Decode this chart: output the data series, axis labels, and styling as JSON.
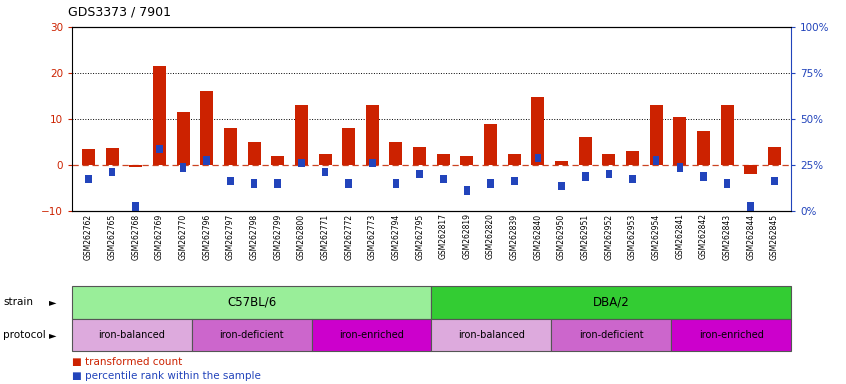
{
  "title": "GDS3373 / 7901",
  "samples": [
    "GSM262762",
    "GSM262765",
    "GSM262768",
    "GSM262769",
    "GSM262770",
    "GSM262796",
    "GSM262797",
    "GSM262798",
    "GSM262799",
    "GSM262800",
    "GSM262771",
    "GSM262772",
    "GSM262773",
    "GSM262794",
    "GSM262795",
    "GSM262817",
    "GSM262819",
    "GSM262820",
    "GSM262839",
    "GSM262840",
    "GSM262950",
    "GSM262951",
    "GSM262952",
    "GSM262953",
    "GSM262954",
    "GSM262841",
    "GSM262842",
    "GSM262843",
    "GSM262844",
    "GSM262845"
  ],
  "red_values": [
    3.5,
    3.8,
    -0.3,
    21.5,
    11.5,
    16.0,
    8.0,
    5.0,
    2.0,
    13.0,
    2.5,
    8.0,
    13.0,
    5.0,
    4.0,
    2.5,
    2.0,
    9.0,
    2.5,
    14.8,
    1.0,
    6.0,
    2.5,
    3.0,
    13.0,
    10.5,
    7.5,
    13.0,
    -2.0,
    4.0
  ],
  "blue_values_plot": [
    -3.0,
    -1.5,
    -9.0,
    3.5,
    -0.5,
    1.0,
    -3.5,
    -4.0,
    -4.0,
    0.5,
    -1.5,
    -4.0,
    0.5,
    -4.0,
    -2.0,
    -3.0,
    -5.5,
    -4.0,
    -3.5,
    1.5,
    -4.5,
    -2.5,
    -2.0,
    -3.0,
    1.0,
    -0.5,
    -2.5,
    -4.0,
    -9.0,
    -3.5
  ],
  "strain_groups": [
    {
      "label": "C57BL/6",
      "start": 0,
      "end": 15,
      "color": "#99EE99"
    },
    {
      "label": "DBA/2",
      "start": 15,
      "end": 30,
      "color": "#33CC33"
    }
  ],
  "protocol_groups": [
    {
      "label": "iron-balanced",
      "start": 0,
      "end": 5,
      "color": "#DDAADD"
    },
    {
      "label": "iron-deficient",
      "start": 5,
      "end": 10,
      "color": "#CC66CC"
    },
    {
      "label": "iron-enriched",
      "start": 10,
      "end": 15,
      "color": "#CC00CC"
    },
    {
      "label": "iron-balanced",
      "start": 15,
      "end": 20,
      "color": "#DDAADD"
    },
    {
      "label": "iron-deficient",
      "start": 20,
      "end": 25,
      "color": "#CC66CC"
    },
    {
      "label": "iron-enriched",
      "start": 25,
      "end": 30,
      "color": "#CC00CC"
    }
  ],
  "ylim": [
    -10,
    30
  ],
  "yticks_left": [
    -10,
    0,
    10,
    20,
    30
  ],
  "bar_color_red": "#CC2200",
  "bar_color_blue": "#2244BB",
  "hline_color": "#CC4422",
  "bg_color": "#FFFFFF",
  "xticklabel_bg": "#DDDDDD"
}
